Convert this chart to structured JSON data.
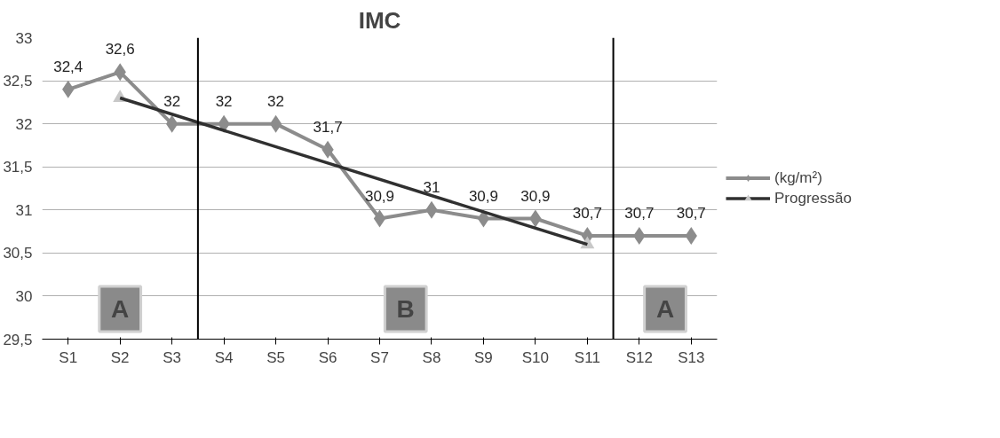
{
  "chart_data": {
    "type": "line",
    "title": "IMC",
    "categories": [
      "S1",
      "S2",
      "S3",
      "S4",
      "S5",
      "S6",
      "S7",
      "S8",
      "S9",
      "S10",
      "S11",
      "S12",
      "S13"
    ],
    "series": [
      {
        "name": "(kg/m²)",
        "color": "#8c8c8c",
        "marker": "diamond",
        "values": [
          32.4,
          32.6,
          32,
          32,
          32,
          31.7,
          30.9,
          31,
          30.9,
          30.9,
          30.7,
          30.7,
          30.7
        ],
        "value_labels": [
          "32,4",
          "32,6",
          "32",
          "32",
          "32",
          "31,7",
          "30,9",
          "31",
          "30,9",
          "30,9",
          "30,7",
          "30,7",
          "30,7"
        ]
      },
      {
        "name": "Progressão",
        "color": "#303030",
        "marker": "triangle",
        "x": [
          "S2",
          "S11"
        ],
        "values": [
          32.3,
          30.6
        ]
      }
    ],
    "ylim": [
      29.5,
      33
    ],
    "yticks": [
      {
        "value": 29.5,
        "label": "29,5"
      },
      30,
      {
        "value": 30.5,
        "label": "30,5"
      },
      31,
      {
        "value": 31.5,
        "label": "31,5"
      },
      32,
      {
        "value": 32.5,
        "label": "32,5"
      },
      33
    ],
    "annotations": [
      "A",
      "B",
      "A"
    ],
    "grid": "y",
    "legend": "right"
  }
}
